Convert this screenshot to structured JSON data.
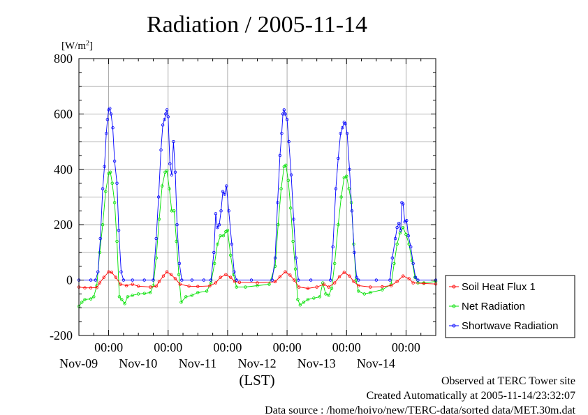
{
  "chart_data": {
    "type": "line",
    "title": "Radiation / 2005-11-14",
    "unit_label": "[W/m",
    "unit_sup": "2",
    "unit_close": "]",
    "xlabel": "(LST)",
    "ylim": [
      -200,
      800
    ],
    "y_ticks": [
      -200,
      0,
      200,
      400,
      600,
      800
    ],
    "y_tick_labels": [
      "-200",
      "0",
      "200",
      "400",
      "600",
      "800"
    ],
    "x_range_days": [
      -0.5,
      5.5
    ],
    "x_ticks": [
      0,
      1,
      2,
      3,
      4,
      5
    ],
    "x_time_label": "00:00",
    "x_date_labels": [
      "Nov-09",
      "Nov-10",
      "Nov-11",
      "Nov-12",
      "Nov-13",
      "Nov-14"
    ],
    "grid": true,
    "legend_position": "right",
    "series": [
      {
        "name": "Soil Heat Flux 1",
        "color": "#ff0000",
        "points": [
          [
            -0.5,
            -25
          ],
          [
            -0.4,
            -28
          ],
          [
            -0.3,
            -28
          ],
          [
            -0.2,
            -27
          ],
          [
            -0.15,
            -10
          ],
          [
            -0.08,
            10
          ],
          [
            0.0,
            30
          ],
          [
            0.05,
            28
          ],
          [
            0.12,
            10
          ],
          [
            0.2,
            -15
          ],
          [
            0.3,
            -20
          ],
          [
            0.4,
            -15
          ],
          [
            0.5,
            -22
          ],
          [
            0.7,
            -25
          ],
          [
            0.8,
            -22
          ],
          [
            0.85,
            -5
          ],
          [
            0.92,
            15
          ],
          [
            0.98,
            30
          ],
          [
            1.05,
            20
          ],
          [
            1.12,
            5
          ],
          [
            1.2,
            -15
          ],
          [
            1.35,
            -22
          ],
          [
            1.5,
            -23
          ],
          [
            1.7,
            -21
          ],
          [
            1.8,
            -10
          ],
          [
            1.88,
            10
          ],
          [
            1.97,
            20
          ],
          [
            2.05,
            10
          ],
          [
            2.12,
            -5
          ],
          [
            2.2,
            -8
          ],
          [
            2.5,
            -10
          ],
          [
            2.8,
            -6
          ],
          [
            2.88,
            12
          ],
          [
            2.97,
            30
          ],
          [
            3.05,
            18
          ],
          [
            3.12,
            0
          ],
          [
            3.2,
            -25
          ],
          [
            3.35,
            -30
          ],
          [
            3.5,
            -25
          ],
          [
            3.62,
            -15
          ],
          [
            3.7,
            -25
          ],
          [
            3.8,
            -10
          ],
          [
            3.88,
            12
          ],
          [
            3.96,
            28
          ],
          [
            4.05,
            15
          ],
          [
            4.12,
            -5
          ],
          [
            4.2,
            -20
          ],
          [
            4.4,
            -25
          ],
          [
            4.6,
            -24
          ],
          [
            4.75,
            -20
          ],
          [
            4.85,
            -5
          ],
          [
            4.95,
            15
          ],
          [
            5.05,
            5
          ],
          [
            5.12,
            -10
          ],
          [
            5.3,
            -12
          ],
          [
            5.5,
            -14
          ]
        ]
      },
      {
        "name": "Net Radiation",
        "color": "#00e000",
        "points": [
          [
            -0.5,
            -95
          ],
          [
            -0.45,
            -80
          ],
          [
            -0.4,
            -70
          ],
          [
            -0.3,
            -68
          ],
          [
            -0.25,
            -60
          ],
          [
            -0.2,
            -20
          ],
          [
            -0.15,
            100
          ],
          [
            -0.1,
            200
          ],
          [
            -0.05,
            320
          ],
          [
            0.0,
            385
          ],
          [
            0.03,
            390
          ],
          [
            0.06,
            350
          ],
          [
            0.1,
            280
          ],
          [
            0.14,
            140
          ],
          [
            0.18,
            -60
          ],
          [
            0.22,
            -70
          ],
          [
            0.27,
            -85
          ],
          [
            0.32,
            -60
          ],
          [
            0.4,
            -55
          ],
          [
            0.5,
            -50
          ],
          [
            0.6,
            -48
          ],
          [
            0.7,
            -45
          ],
          [
            0.75,
            -20
          ],
          [
            0.8,
            80
          ],
          [
            0.85,
            220
          ],
          [
            0.9,
            340
          ],
          [
            0.95,
            390
          ],
          [
            0.98,
            395
          ],
          [
            1.02,
            330
          ],
          [
            1.06,
            250
          ],
          [
            1.1,
            250
          ],
          [
            1.14,
            140
          ],
          [
            1.18,
            20
          ],
          [
            1.22,
            -80
          ],
          [
            1.3,
            -60
          ],
          [
            1.4,
            -55
          ],
          [
            1.5,
            -45
          ],
          [
            1.65,
            -40
          ],
          [
            1.72,
            -10
          ],
          [
            1.78,
            60
          ],
          [
            1.83,
            130
          ],
          [
            1.88,
            160
          ],
          [
            1.93,
            160
          ],
          [
            1.97,
            175
          ],
          [
            2.0,
            180
          ],
          [
            2.05,
            90
          ],
          [
            2.1,
            20
          ],
          [
            2.15,
            -25
          ],
          [
            2.3,
            -25
          ],
          [
            2.5,
            -20
          ],
          [
            2.7,
            -15
          ],
          [
            2.8,
            50
          ],
          [
            2.85,
            200
          ],
          [
            2.9,
            330
          ],
          [
            2.95,
            410
          ],
          [
            2.98,
            415
          ],
          [
            3.02,
            360
          ],
          [
            3.06,
            260
          ],
          [
            3.1,
            140
          ],
          [
            3.14,
            40
          ],
          [
            3.18,
            -70
          ],
          [
            3.22,
            -90
          ],
          [
            3.28,
            -80
          ],
          [
            3.35,
            -70
          ],
          [
            3.45,
            -65
          ],
          [
            3.55,
            -60
          ],
          [
            3.6,
            -10
          ],
          [
            3.65,
            -50
          ],
          [
            3.7,
            -55
          ],
          [
            3.75,
            -30
          ],
          [
            3.8,
            60
          ],
          [
            3.86,
            200
          ],
          [
            3.91,
            300
          ],
          [
            3.96,
            370
          ],
          [
            4.0,
            375
          ],
          [
            4.04,
            330
          ],
          [
            4.08,
            280
          ],
          [
            4.12,
            130
          ],
          [
            4.16,
            0
          ],
          [
            4.2,
            -40
          ],
          [
            4.3,
            -50
          ],
          [
            4.4,
            -45
          ],
          [
            4.6,
            -35
          ],
          [
            4.75,
            -15
          ],
          [
            4.8,
            60
          ],
          [
            4.85,
            130
          ],
          [
            4.9,
            170
          ],
          [
            4.95,
            190
          ],
          [
            5.0,
            165
          ],
          [
            5.05,
            130
          ],
          [
            5.1,
            70
          ],
          [
            5.15,
            10
          ],
          [
            5.2,
            -10
          ],
          [
            5.3,
            -10
          ],
          [
            5.5,
            -5
          ]
        ]
      },
      {
        "name": "Shortwave Radiation",
        "color": "#0000ff",
        "points": [
          [
            -0.5,
            0
          ],
          [
            -0.3,
            0
          ],
          [
            -0.22,
            0
          ],
          [
            -0.18,
            30
          ],
          [
            -0.14,
            150
          ],
          [
            -0.1,
            330
          ],
          [
            -0.07,
            410
          ],
          [
            -0.04,
            530
          ],
          [
            -0.02,
            580
          ],
          [
            0.0,
            615
          ],
          [
            0.02,
            620
          ],
          [
            0.04,
            600
          ],
          [
            0.07,
            550
          ],
          [
            0.1,
            430
          ],
          [
            0.14,
            350
          ],
          [
            0.17,
            180
          ],
          [
            0.21,
            30
          ],
          [
            0.25,
            0
          ],
          [
            0.4,
            0
          ],
          [
            0.6,
            0
          ],
          [
            0.75,
            0
          ],
          [
            0.8,
            150
          ],
          [
            0.84,
            300
          ],
          [
            0.88,
            470
          ],
          [
            0.91,
            560
          ],
          [
            0.94,
            580
          ],
          [
            0.96,
            600
          ],
          [
            0.98,
            615
          ],
          [
            1.0,
            590
          ],
          [
            1.03,
            420
          ],
          [
            1.06,
            380
          ],
          [
            1.09,
            500
          ],
          [
            1.12,
            390
          ],
          [
            1.15,
            200
          ],
          [
            1.19,
            60
          ],
          [
            1.23,
            0
          ],
          [
            1.4,
            0
          ],
          [
            1.6,
            0
          ],
          [
            1.72,
            0
          ],
          [
            1.77,
            100
          ],
          [
            1.8,
            240
          ],
          [
            1.83,
            190
          ],
          [
            1.86,
            200
          ],
          [
            1.89,
            250
          ],
          [
            1.92,
            320
          ],
          [
            1.95,
            310
          ],
          [
            1.98,
            340
          ],
          [
            2.02,
            250
          ],
          [
            2.07,
            130
          ],
          [
            2.11,
            30
          ],
          [
            2.15,
            0
          ],
          [
            2.4,
            0
          ],
          [
            2.75,
            0
          ],
          [
            2.8,
            80
          ],
          [
            2.84,
            280
          ],
          [
            2.88,
            450
          ],
          [
            2.91,
            530
          ],
          [
            2.93,
            600
          ],
          [
            2.95,
            615
          ],
          [
            2.97,
            600
          ],
          [
            3.0,
            580
          ],
          [
            3.03,
            500
          ],
          [
            3.07,
            380
          ],
          [
            3.11,
            220
          ],
          [
            3.15,
            80
          ],
          [
            3.19,
            0
          ],
          [
            3.4,
            0
          ],
          [
            3.73,
            0
          ],
          [
            3.77,
            120
          ],
          [
            3.82,
            330
          ],
          [
            3.86,
            440
          ],
          [
            3.9,
            530
          ],
          [
            3.93,
            550
          ],
          [
            3.96,
            570
          ],
          [
            3.98,
            565
          ],
          [
            4.01,
            530
          ],
          [
            4.05,
            400
          ],
          [
            4.09,
            250
          ],
          [
            4.13,
            100
          ],
          [
            4.17,
            10
          ],
          [
            4.2,
            0
          ],
          [
            4.5,
            0
          ],
          [
            4.73,
            0
          ],
          [
            4.77,
            80
          ],
          [
            4.82,
            150
          ],
          [
            4.85,
            190
          ],
          [
            4.88,
            205
          ],
          [
            4.91,
            180
          ],
          [
            4.93,
            280
          ],
          [
            4.95,
            275
          ],
          [
            4.98,
            210
          ],
          [
            5.01,
            215
          ],
          [
            5.04,
            160
          ],
          [
            5.08,
            120
          ],
          [
            5.12,
            60
          ],
          [
            5.16,
            10
          ],
          [
            5.2,
            0
          ],
          [
            5.5,
            0
          ]
        ]
      }
    ]
  },
  "footer": {
    "line1": "Observed at TERC Tower site",
    "line2": "Created Automatically at 2005-11-14/23:32:07",
    "line3": "Data source : /home/hoivo/new/TERC-data/sorted  data/MET.30m.dat"
  }
}
